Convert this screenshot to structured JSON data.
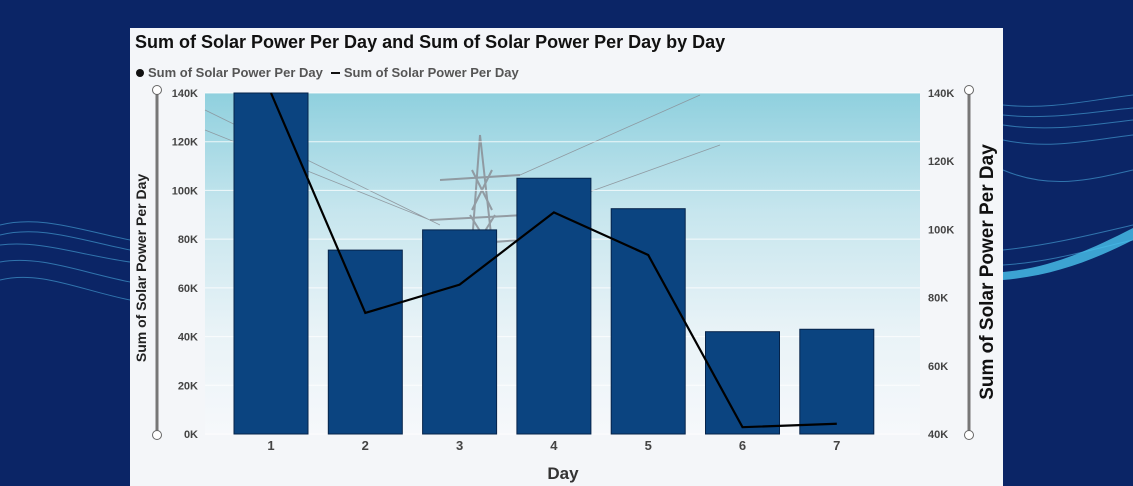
{
  "chart_data": {
    "type": "bar",
    "title": "Sum of Solar Power Per Day and Sum of Solar Power Per Day by Day",
    "legend": [
      "Sum of Solar Power Per Day",
      "Sum of Solar Power Per Day"
    ],
    "xlabel": "Day",
    "ylabel_left": "Sum of Solar Power Per Day",
    "ylabel_right": "Sum of Solar Power Per Day",
    "categories": [
      "1",
      "2",
      "3",
      "4",
      "5",
      "6",
      "7"
    ],
    "series": [
      {
        "kind": "bar",
        "axis": "left",
        "values": [
          140000,
          75500,
          83800,
          105000,
          92500,
          42000,
          43000
        ],
        "color": "#0b4480"
      },
      {
        "kind": "line",
        "axis": "right",
        "values": [
          140000,
          75500,
          83800,
          105000,
          92500,
          42000,
          43000
        ],
        "color": "#000000"
      }
    ],
    "ylim_left": [
      0,
      140000
    ],
    "ylim_right": [
      40000,
      140000
    ],
    "yticks_left": [
      0,
      20000,
      40000,
      60000,
      80000,
      100000,
      120000,
      140000
    ],
    "yticks_left_labels": [
      "0K",
      "20K",
      "40K",
      "60K",
      "80K",
      "100K",
      "120K",
      "140K"
    ],
    "yticks_right": [
      40000,
      60000,
      80000,
      100000,
      120000,
      140000
    ],
    "yticks_right_labels": [
      "40K",
      "60K",
      "80K",
      "100K",
      "120K",
      "140K"
    ],
    "grid": true,
    "legend_position": "top-left"
  }
}
